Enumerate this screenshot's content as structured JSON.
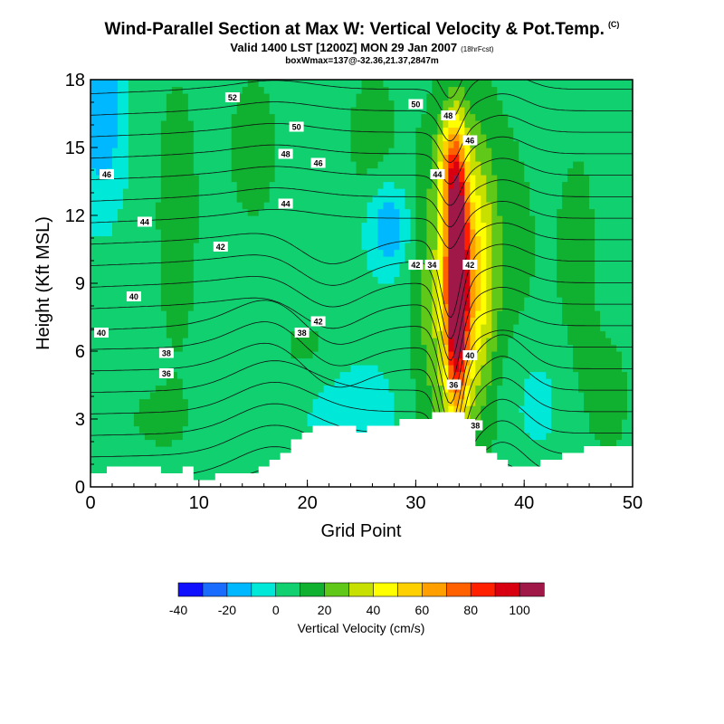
{
  "title": "Wind-Parallel Section at Max W: Vertical Velocity & Pot.Temp.",
  "title_mark": "(C)",
  "subtitle": "Valid 1400 LST [1200Z] MON 29 Jan 2007",
  "subtitle_small": "(18hrFcst)",
  "subtitle2": "boxWmax=137@-32.36,21.37,2847m",
  "chart_data": {
    "type": "heatmap",
    "xlabel": "Grid Point",
    "ylabel": "Height (Kft MSL)",
    "xlim": [
      0,
      50
    ],
    "ylim": [
      0,
      18
    ],
    "xticks": [
      "0",
      "10",
      "20",
      "30",
      "40",
      "50"
    ],
    "yticks": [
      "0",
      "3",
      "6",
      "9",
      "12",
      "15",
      "18"
    ],
    "colorbar": {
      "label": "Vertical Velocity (cm/s)",
      "tick_labels": [
        "-40",
        "-20",
        "0",
        "20",
        "40",
        "60",
        "80",
        "100"
      ],
      "colors": [
        "#1010ff",
        "#1a6cff",
        "#00b8ff",
        "#00e8d8",
        "#10d070",
        "#10b030",
        "#60c818",
        "#c8e000",
        "#ffff00",
        "#ffd000",
        "#ffa000",
        "#ff6000",
        "#ff2000",
        "#d80010",
        "#a01848"
      ]
    },
    "theta_contour_labels": [
      "52",
      "50",
      "50",
      "48",
      "48",
      "46",
      "46",
      "46",
      "44",
      "44",
      "44",
      "42",
      "42",
      "42",
      "42",
      "40",
      "40",
      "40",
      "38",
      "38",
      "38",
      "36",
      "36",
      "34"
    ],
    "terrain_heights_kft": [
      0.6,
      0.6,
      0.9,
      0.9,
      0.9,
      0.9,
      0.9,
      0.6,
      0.6,
      0.9,
      0.3,
      0.3,
      0.6,
      0.6,
      0.6,
      0.6,
      0.9,
      1.2,
      1.5,
      2.1,
      2.4,
      2.7,
      2.7,
      2.7,
      2.7,
      2.4,
      2.7,
      2.7,
      2.7,
      3.0,
      3.0,
      3.0,
      3.3,
      3.3,
      3.3,
      3.0,
      1.8,
      1.5,
      1.2,
      0.9,
      0.9,
      0.9,
      1.2,
      1.2,
      1.5,
      1.5,
      1.8,
      1.8,
      1.8,
      1.8,
      1.8
    ],
    "max_updraft": {
      "grid_point": 34,
      "height_kft": 9.5,
      "value_cm_s": 137
    }
  }
}
